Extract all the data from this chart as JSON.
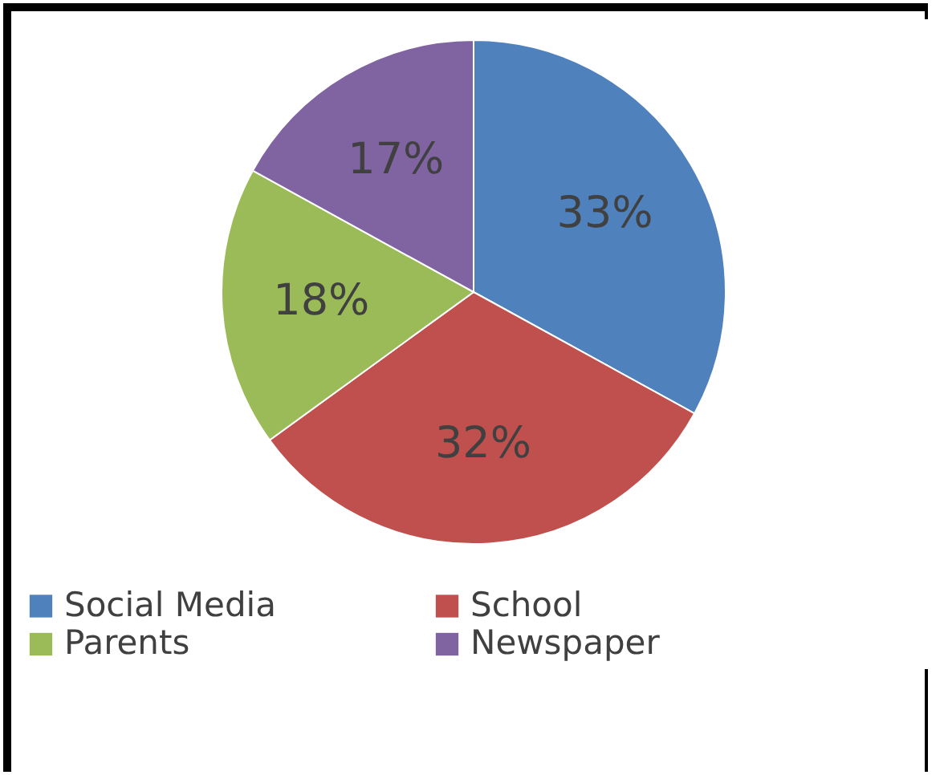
{
  "chart_data": {
    "type": "pie",
    "categories": [
      "Social Media",
      "School",
      "Parents",
      "Newspaper"
    ],
    "values": [
      33,
      32,
      18,
      17
    ],
    "value_labels": [
      "33%",
      "32%",
      "18%",
      "17%"
    ],
    "colors": [
      "#4f81bd",
      "#c0504d",
      "#9bbb59",
      "#8064a2"
    ],
    "legend": "bottom"
  }
}
